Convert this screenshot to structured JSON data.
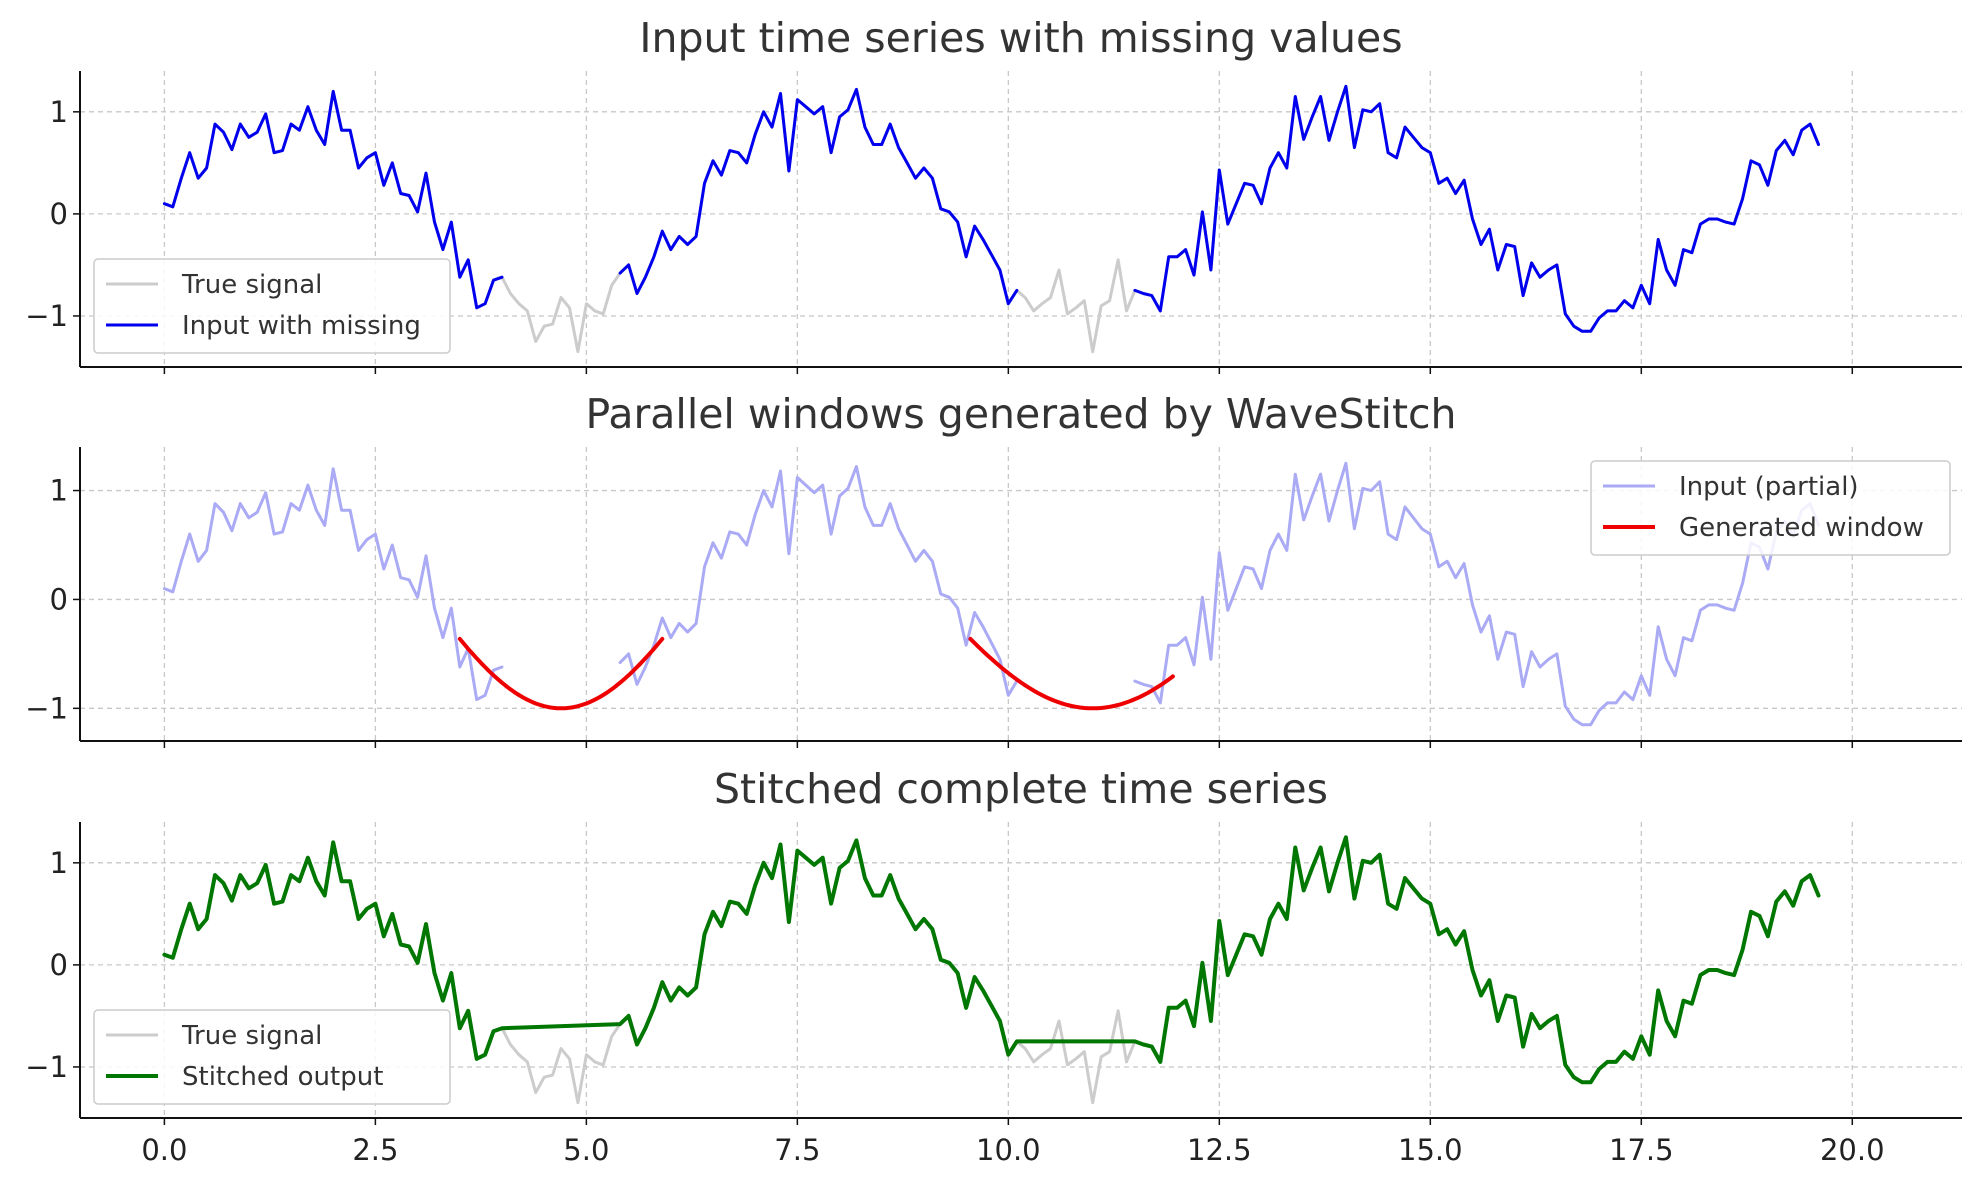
{
  "chart_data": [
    {
      "type": "line",
      "title": "Input time series with missing values",
      "xlabel": "",
      "ylabel": "",
      "xlim": [
        -1.0,
        21.3
      ],
      "ylim": [
        -1.5,
        1.4
      ],
      "xticks": [
        0.0,
        2.5,
        5.0,
        7.5,
        10.0,
        12.5,
        15.0,
        17.5,
        20.0
      ],
      "xtick_labels": [
        "0.0",
        "2.5",
        "5.0",
        "7.5",
        "10.0",
        "12.5",
        "15.0",
        "17.5",
        "20.0"
      ],
      "show_xtick_labels": false,
      "yticks": [
        1,
        0,
        -1
      ],
      "ytick_labels": [
        "1",
        "0",
        "−1"
      ],
      "grid": true,
      "legend": {
        "placement": "lower-left",
        "entries": [
          {
            "label": "True signal",
            "color": "#cccccc"
          },
          {
            "label": "Input with missing",
            "color": "#0000ee"
          }
        ]
      },
      "series": [
        {
          "name": "True signal",
          "role": "true",
          "color": "#cccccc",
          "width": 3
        },
        {
          "name": "Input with missing",
          "role": "input",
          "color": "#0000ee",
          "width": 3
        }
      ]
    },
    {
      "type": "line",
      "title": "Parallel windows generated by WaveStitch",
      "xlabel": "",
      "ylabel": "",
      "xlim": [
        -1.0,
        21.3
      ],
      "ylim": [
        -1.3,
        1.4
      ],
      "xticks": [
        0.0,
        2.5,
        5.0,
        7.5,
        10.0,
        12.5,
        15.0,
        17.5,
        20.0
      ],
      "xtick_labels": [
        "0.0",
        "2.5",
        "5.0",
        "7.5",
        "10.0",
        "12.5",
        "15.0",
        "17.5",
        "20.0"
      ],
      "show_xtick_labels": false,
      "yticks": [
        1,
        0,
        -1
      ],
      "ytick_labels": [
        "1",
        "0",
        "−1"
      ],
      "grid": true,
      "legend": {
        "placement": "top-right",
        "entries": [
          {
            "label": "Input (partial)",
            "color": "#aaaaf5"
          },
          {
            "label": "Generated window",
            "color": "#ee0000"
          }
        ]
      },
      "series": [
        {
          "name": "Input (partial)",
          "role": "partial",
          "color": "#aaaaf5",
          "width": 3
        },
        {
          "name": "Generated window",
          "role": "window",
          "color": "#ee0000",
          "width": 4,
          "windows": [
            {
              "x_start": 3.5,
              "x_end": 5.9,
              "center": 4.7,
              "depth": -1.0
            },
            {
              "x_start": 9.55,
              "x_end": 11.95,
              "center": 11.0,
              "depth": -1.0
            }
          ]
        }
      ]
    },
    {
      "type": "line",
      "title": "Stitched complete time series",
      "xlabel": "",
      "ylabel": "",
      "xlim": [
        -1.0,
        21.3
      ],
      "ylim": [
        -1.5,
        1.4
      ],
      "xticks": [
        0.0,
        2.5,
        5.0,
        7.5,
        10.0,
        12.5,
        15.0,
        17.5,
        20.0
      ],
      "xtick_labels": [
        "0.0",
        "2.5",
        "5.0",
        "7.5",
        "10.0",
        "12.5",
        "15.0",
        "17.5",
        "20.0"
      ],
      "show_xtick_labels": true,
      "yticks": [
        1,
        0,
        -1
      ],
      "ytick_labels": [
        "1",
        "0",
        "−1"
      ],
      "grid": true,
      "legend": {
        "placement": "lower-left",
        "entries": [
          {
            "label": "True signal",
            "color": "#cccccc"
          },
          {
            "label": "Stitched output",
            "color": "#007700"
          }
        ]
      },
      "series": [
        {
          "name": "True signal",
          "role": "true",
          "color": "#cccccc",
          "width": 3
        },
        {
          "name": "Stitched output",
          "role": "stitched",
          "color": "#007700",
          "width": 4
        }
      ]
    }
  ],
  "signal": {
    "x_start": 0.0,
    "x_step": 0.1,
    "values": [
      0.1,
      0.07,
      0.35,
      0.6,
      0.35,
      0.45,
      0.88,
      0.8,
      0.63,
      0.88,
      0.75,
      0.8,
      0.98,
      0.6,
      0.62,
      0.88,
      0.82,
      1.05,
      0.82,
      0.68,
      1.2,
      0.82,
      0.82,
      0.45,
      0.55,
      0.6,
      0.28,
      0.5,
      0.2,
      0.18,
      0.02,
      0.4,
      -0.08,
      -0.35,
      -0.08,
      -0.62,
      -0.45,
      -0.92,
      -0.88,
      -0.65,
      -0.62,
      -0.78,
      -0.88,
      -0.95,
      -1.25,
      -1.1,
      -1.08,
      -0.82,
      -0.92,
      -1.35,
      -0.88,
      -0.95,
      -0.98,
      -0.7,
      -0.58,
      -0.5,
      -0.78,
      -0.62,
      -0.42,
      -0.17,
      -0.35,
      -0.22,
      -0.3,
      -0.22,
      0.3,
      0.52,
      0.38,
      0.62,
      0.6,
      0.5,
      0.78,
      1.0,
      0.85,
      1.18,
      0.42,
      1.12,
      1.05,
      0.98,
      1.05,
      0.6,
      0.95,
      1.02,
      1.22,
      0.85,
      0.68,
      0.68,
      0.88,
      0.65,
      0.5,
      0.35,
      0.45,
      0.35,
      0.05,
      0.02,
      -0.08,
      -0.42,
      -0.12,
      -0.25,
      -0.4,
      -0.55,
      -0.88,
      -0.75,
      -0.82,
      -0.95,
      -0.88,
      -0.82,
      -0.55,
      -0.98,
      -0.92,
      -0.85,
      -1.35,
      -0.9,
      -0.85,
      -0.45,
      -0.95,
      -0.75,
      -0.78,
      -0.8,
      -0.95,
      -0.42,
      -0.42,
      -0.35,
      -0.6,
      0.02,
      -0.55,
      0.43,
      -0.1,
      0.1,
      0.3,
      0.28,
      0.1,
      0.45,
      0.6,
      0.45,
      1.15,
      0.73,
      0.95,
      1.15,
      0.72,
      1.0,
      1.25,
      0.65,
      1.02,
      1.0,
      1.08,
      0.6,
      0.55,
      0.85,
      0.75,
      0.65,
      0.6,
      0.3,
      0.35,
      0.2,
      0.33,
      -0.05,
      -0.3,
      -0.15,
      -0.55,
      -0.3,
      -0.32,
      -0.8,
      -0.48,
      -0.62,
      -0.55,
      -0.5,
      -0.98,
      -1.1,
      -1.15,
      -1.15,
      -1.02,
      -0.95,
      -0.95,
      -0.85,
      -0.92,
      -0.7,
      -0.88,
      -0.25,
      -0.55,
      -0.7,
      -0.35,
      -0.38,
      -0.1,
      -0.05,
      -0.05,
      -0.08,
      -0.1,
      0.15,
      0.52,
      0.48,
      0.28,
      0.62,
      0.72,
      0.58,
      0.82,
      0.88,
      0.68
    ],
    "gaps": [
      {
        "from_index": 40,
        "to_index": 54
      },
      {
        "from_index": 101,
        "to_index": 115
      }
    ]
  }
}
